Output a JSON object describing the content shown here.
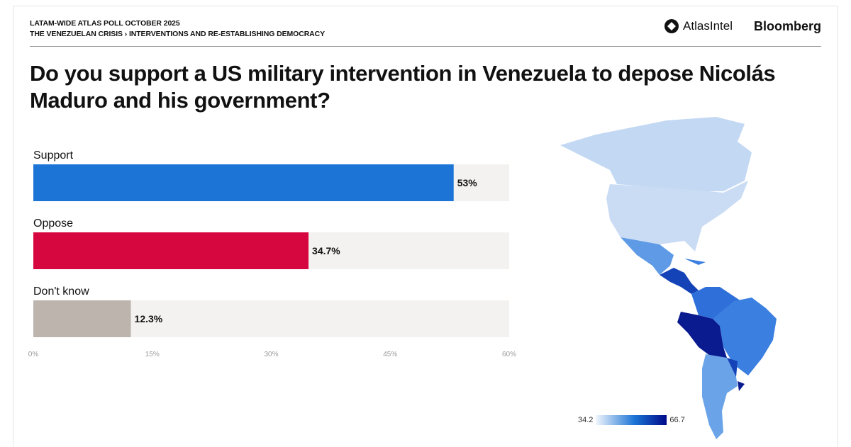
{
  "header": {
    "line1": "LATAM-WIDE ATLAS POLL OCTOBER 2025",
    "line2": "THE VENEZUELAN CRISIS › INTERVENTIONS AND RE-ESTABLISHING DEMOCRACY",
    "logo_atlas": "AtlasIntel",
    "logo_bloomberg": "Bloomberg"
  },
  "title": "Do you support a US military intervention in Venezuela to depose Nicolás Maduro and his government?",
  "chart_data": {
    "type": "bar",
    "orientation": "horizontal",
    "title": "Do you support a US military intervention in Venezuela to depose Nicolás Maduro and his government?",
    "categories": [
      "Support",
      "Oppose",
      "Don't know"
    ],
    "values": [
      53,
      34.7,
      12.3
    ],
    "value_labels": [
      "53%",
      "34.7%",
      "12.3%"
    ],
    "colors": [
      "#1b74d6",
      "#d6073f",
      "#bdb4ae"
    ],
    "track_color": "#f3f2f0",
    "xlim": [
      0,
      60
    ],
    "xticks": [
      "0%",
      "15%",
      "30%",
      "45%",
      "60%"
    ],
    "grid": false
  },
  "map": {
    "legend_min": "34.2",
    "legend_max": "66.7",
    "colors": {
      "low": "#f2f6fc",
      "mid": "#1b74d6",
      "high": "#000a8a"
    }
  }
}
